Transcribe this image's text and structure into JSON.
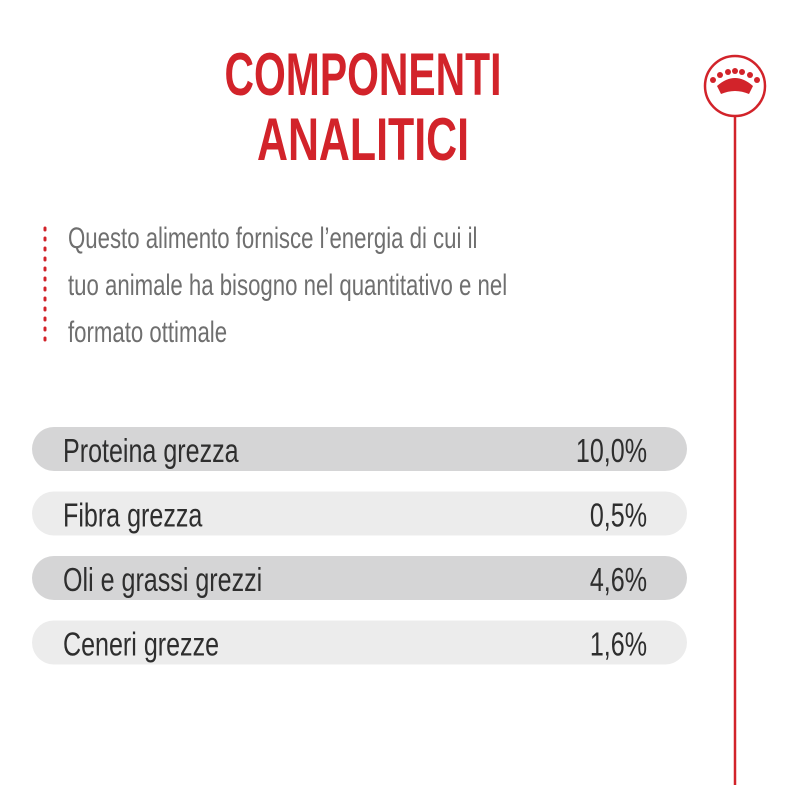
{
  "header": {
    "title_lines": [
      "COMPONENTI",
      "ANALITICI"
    ]
  },
  "description": {
    "lines": [
      "Questo alimento fornisce l’energia di cui il",
      "tuo animale ha bisogno nel quantitativo e nel",
      "formato ottimale"
    ]
  },
  "table": {
    "rows": [
      [
        "Proteina grezza",
        "10,0%"
      ],
      [
        "Fibra grezza",
        "0,5%"
      ],
      [
        "Oli e grassi grezzi",
        "4,6%"
      ],
      [
        "Ceneri grezze",
        "1,6%"
      ]
    ]
  }
}
